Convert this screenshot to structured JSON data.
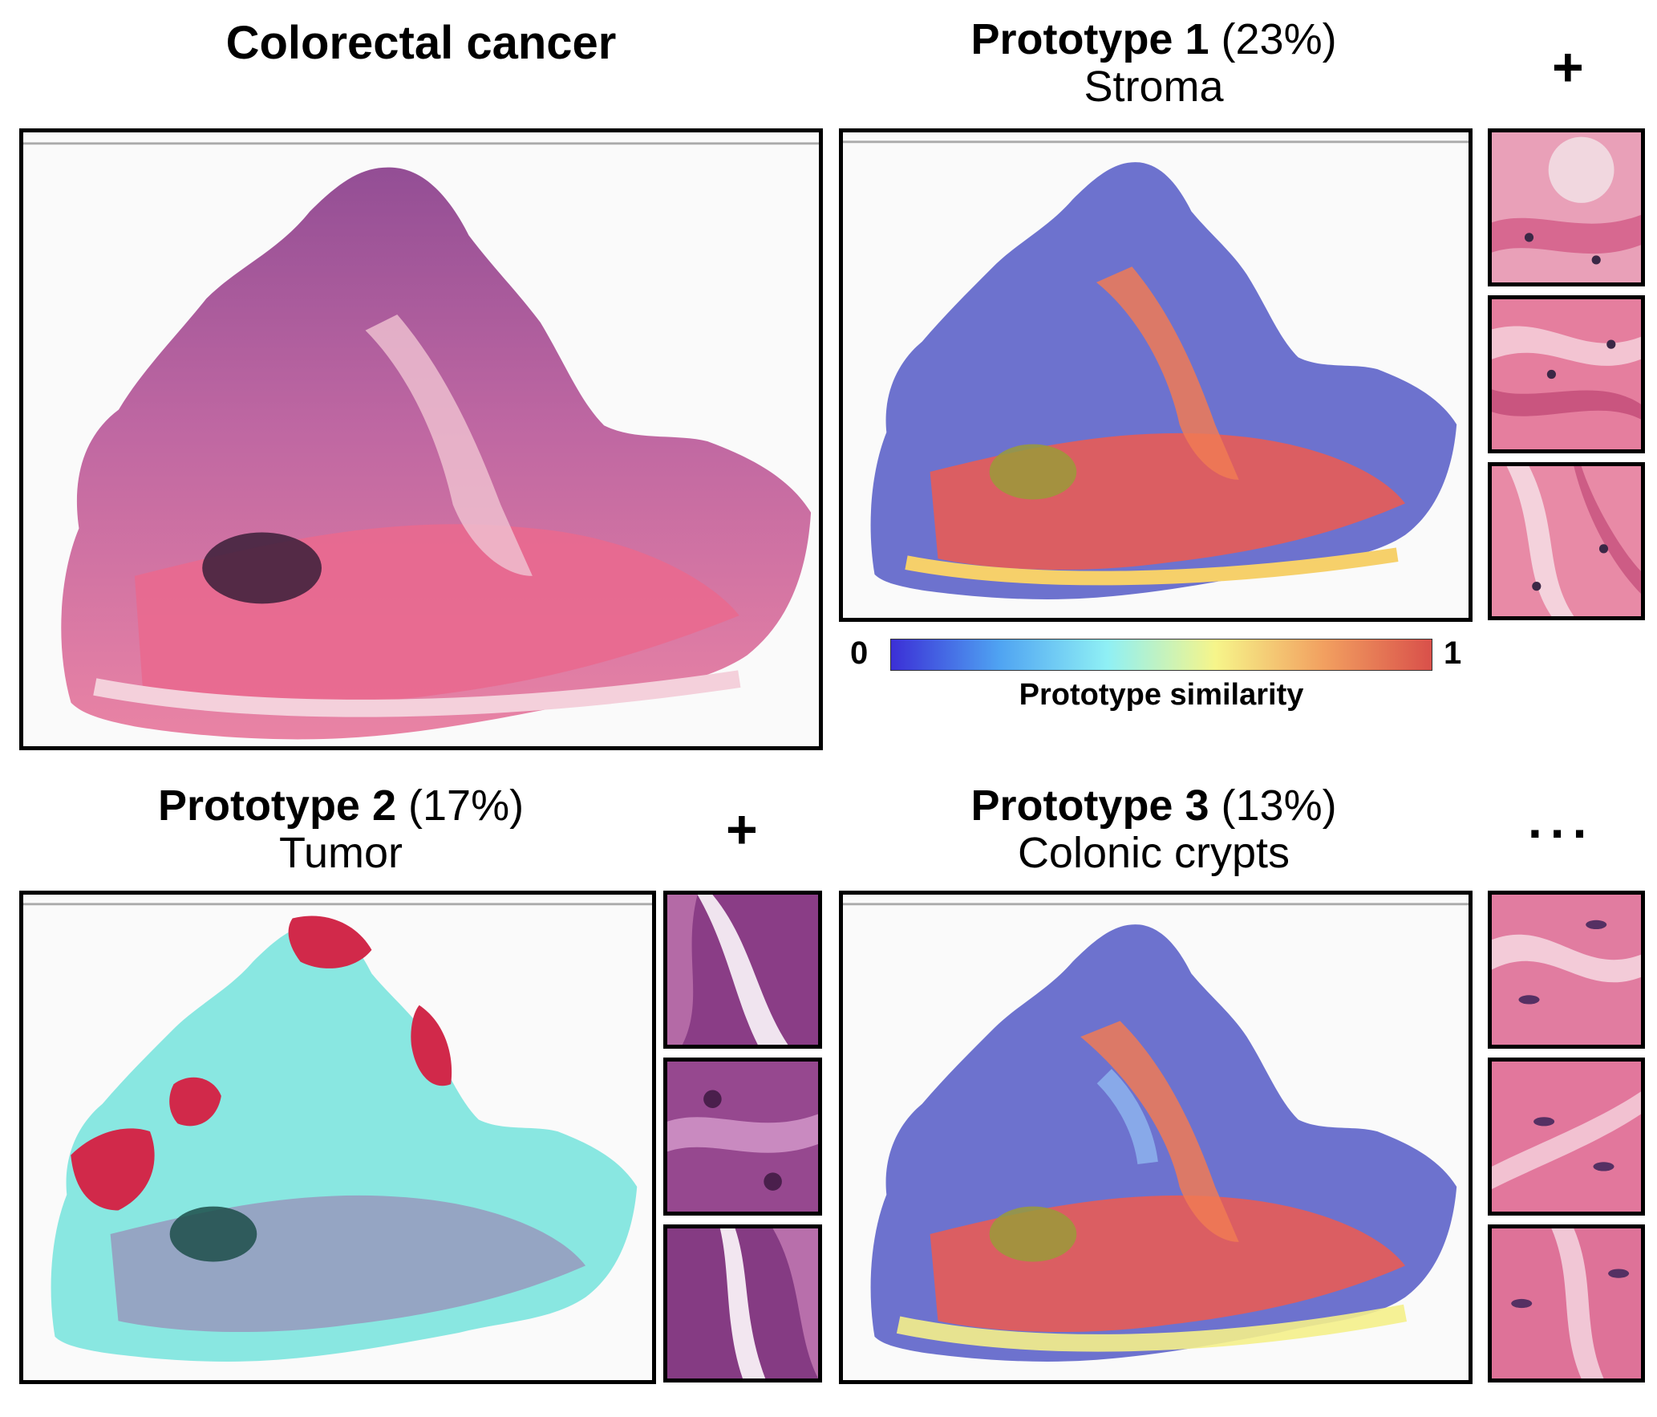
{
  "panels": {
    "original": {
      "title": "Colorectal cancer"
    },
    "p1": {
      "name": "Prototype 1",
      "pct": "(23%)",
      "tissue": "Stroma"
    },
    "p2": {
      "name": "Prototype 2",
      "pct": "(17%)",
      "tissue": "Tumor"
    },
    "p3": {
      "name": "Prototype 3",
      "pct": "(13%)",
      "tissue": "Colonic crypts"
    }
  },
  "symbols": {
    "plus": "+",
    "ellipsis": "..."
  },
  "colorbar": {
    "min_label": "0",
    "max_label": "1",
    "label": "Prototype similarity",
    "stops": [
      "#3b2fd6",
      "#4fa3f2",
      "#8ff0f5",
      "#f6f58a",
      "#f2a060",
      "#d9504a"
    ]
  },
  "colors": {
    "he_pink": "#e7759a",
    "he_purple": "#7f3e86",
    "tumor_red": "#d1294a",
    "teal_overlay": "#63e0d8",
    "low_blue": "#5d63c9",
    "high_red": "#ef5a4f"
  }
}
